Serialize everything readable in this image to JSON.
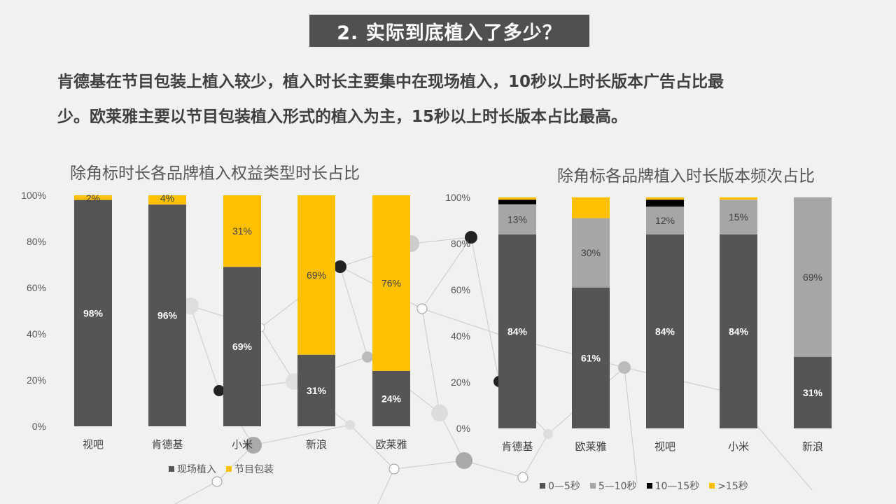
{
  "header": {
    "title": "2. 实际到底植入了多少？",
    "desc_line1": "肯德基在节目包装上植入较少，植入时长主要集中在现场植入，10秒以上时长版本广告占比最",
    "desc_line2": "少。欧莱雅主要以节目包装植入形式的植入为主，15秒以上时长版本占比最高。"
  },
  "colors": {
    "dark": "#555555",
    "yellow": "#ffc000",
    "gray": "#a6a6a6",
    "black": "#000000"
  },
  "chart_data": [
    {
      "type": "bar",
      "stacked": true,
      "title": "除角标时长各品牌植入权益类型时长占比",
      "categories": [
        "视吧",
        "肯德基",
        "小米",
        "新浪",
        "欧莱雅"
      ],
      "ylim": [
        0,
        100
      ],
      "yticks": [
        "0%",
        "20%",
        "40%",
        "60%",
        "80%",
        "100%"
      ],
      "series": [
        {
          "name": "现场植入",
          "values": [
            98,
            96,
            69,
            31,
            24
          ],
          "labels": [
            "98%",
            "96%",
            "69%",
            "31%",
            "24%"
          ]
        },
        {
          "name": "节目包装",
          "values": [
            2,
            4,
            31,
            69,
            76
          ],
          "labels": [
            "2%",
            "4%",
            "31%",
            "69%",
            "76%"
          ]
        }
      ],
      "legend": "bottom"
    },
    {
      "type": "bar",
      "stacked": true,
      "title": "除角标各品牌植入时长版本频次占比",
      "categories": [
        "肯德基",
        "欧莱雅",
        "视吧",
        "小米",
        "新浪"
      ],
      "ylim": [
        0,
        100
      ],
      "yticks": [
        "0%",
        "20%",
        "40%",
        "60%",
        "80%",
        "100%"
      ],
      "series": [
        {
          "name": "0—5秒",
          "values": [
            84,
            61,
            84,
            84,
            31
          ],
          "labels": [
            "84%",
            "61%",
            "84%",
            "84%",
            "31%"
          ]
        },
        {
          "name": "5—10秒",
          "values": [
            13,
            30,
            12,
            15,
            69
          ],
          "labels": [
            "13%",
            "30%",
            "12%",
            "15%",
            "69%"
          ]
        },
        {
          "name": "10—15秒",
          "values": [
            2,
            0,
            3,
            0,
            0
          ],
          "labels": [
            "",
            "",
            "",
            "",
            ""
          ]
        },
        {
          "name": ">15秒",
          "values": [
            1,
            9,
            1,
            1,
            0
          ],
          "labels": [
            "",
            "",
            "",
            "",
            ""
          ]
        }
      ],
      "legend": "bottom"
    }
  ],
  "legend1": {
    "items": [
      {
        "label": "现场植入",
        "color": "#555555"
      },
      {
        "label": "节目包装",
        "color": "#ffc000"
      }
    ]
  },
  "legend2": {
    "items": [
      {
        "label": "0—5秒",
        "color": "#555555"
      },
      {
        "label": "5—10秒",
        "color": "#a6a6a6"
      },
      {
        "label": "10—15秒",
        "color": "#000000"
      },
      {
        "label": ">15秒",
        "color": "#ffc000"
      }
    ]
  }
}
